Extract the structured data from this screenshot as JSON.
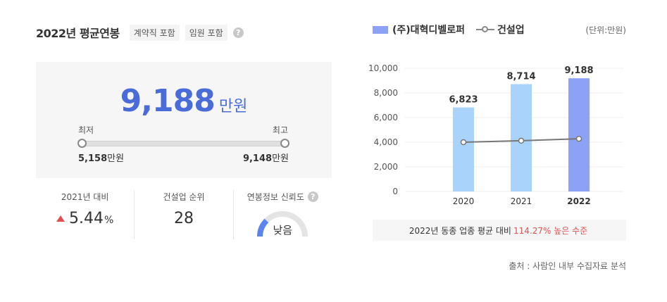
{
  "header": {
    "title": "2022년 평균연봉",
    "tags": [
      "계약직 포함",
      "임원 포함"
    ],
    "help": "?"
  },
  "salary": {
    "value": "9,188",
    "unit": "만원",
    "min_label": "최저",
    "max_label": "최고",
    "min_value": "5,158",
    "max_value": "9,148",
    "value_unit": "만원"
  },
  "stats": {
    "growth": {
      "label": "2021년 대비",
      "value": "5.44",
      "unit": "%",
      "trend": "up"
    },
    "rank": {
      "label": "건설업 순위",
      "value": "28"
    },
    "reliability": {
      "label": "연봉정보 신뢰도",
      "value": "낮음",
      "level": 0.25
    }
  },
  "legend": {
    "company": "(주)대혁디벨로퍼",
    "industry": "건설업"
  },
  "unit_note": "(단위:만원)",
  "chart_data": {
    "type": "bar",
    "categories": [
      "2020",
      "2021",
      "2022"
    ],
    "series": [
      {
        "name": "(주)대혁디벨로퍼",
        "type": "bar",
        "values": [
          6823,
          8714,
          9188
        ],
        "labels": [
          "6,823",
          "8,714",
          "9,188"
        ]
      },
      {
        "name": "건설업",
        "type": "line",
        "values": [
          4000,
          4120,
          4280
        ]
      }
    ],
    "yticks": [
      "10,000",
      "8,000",
      "6,000",
      "4,000",
      "2,000",
      "0"
    ],
    "ylim": [
      0,
      10000
    ],
    "highlight_index": 2,
    "colors": {
      "bar": "#a9d3fa",
      "bar_highlight": "#8da2f5",
      "line": "#777777"
    }
  },
  "note": {
    "prefix": "2022년 동종 업종 평균 대비",
    "percent": "114.27% 높은 수준"
  },
  "source": "출처 : 사람인 내부 수집자료 분석"
}
